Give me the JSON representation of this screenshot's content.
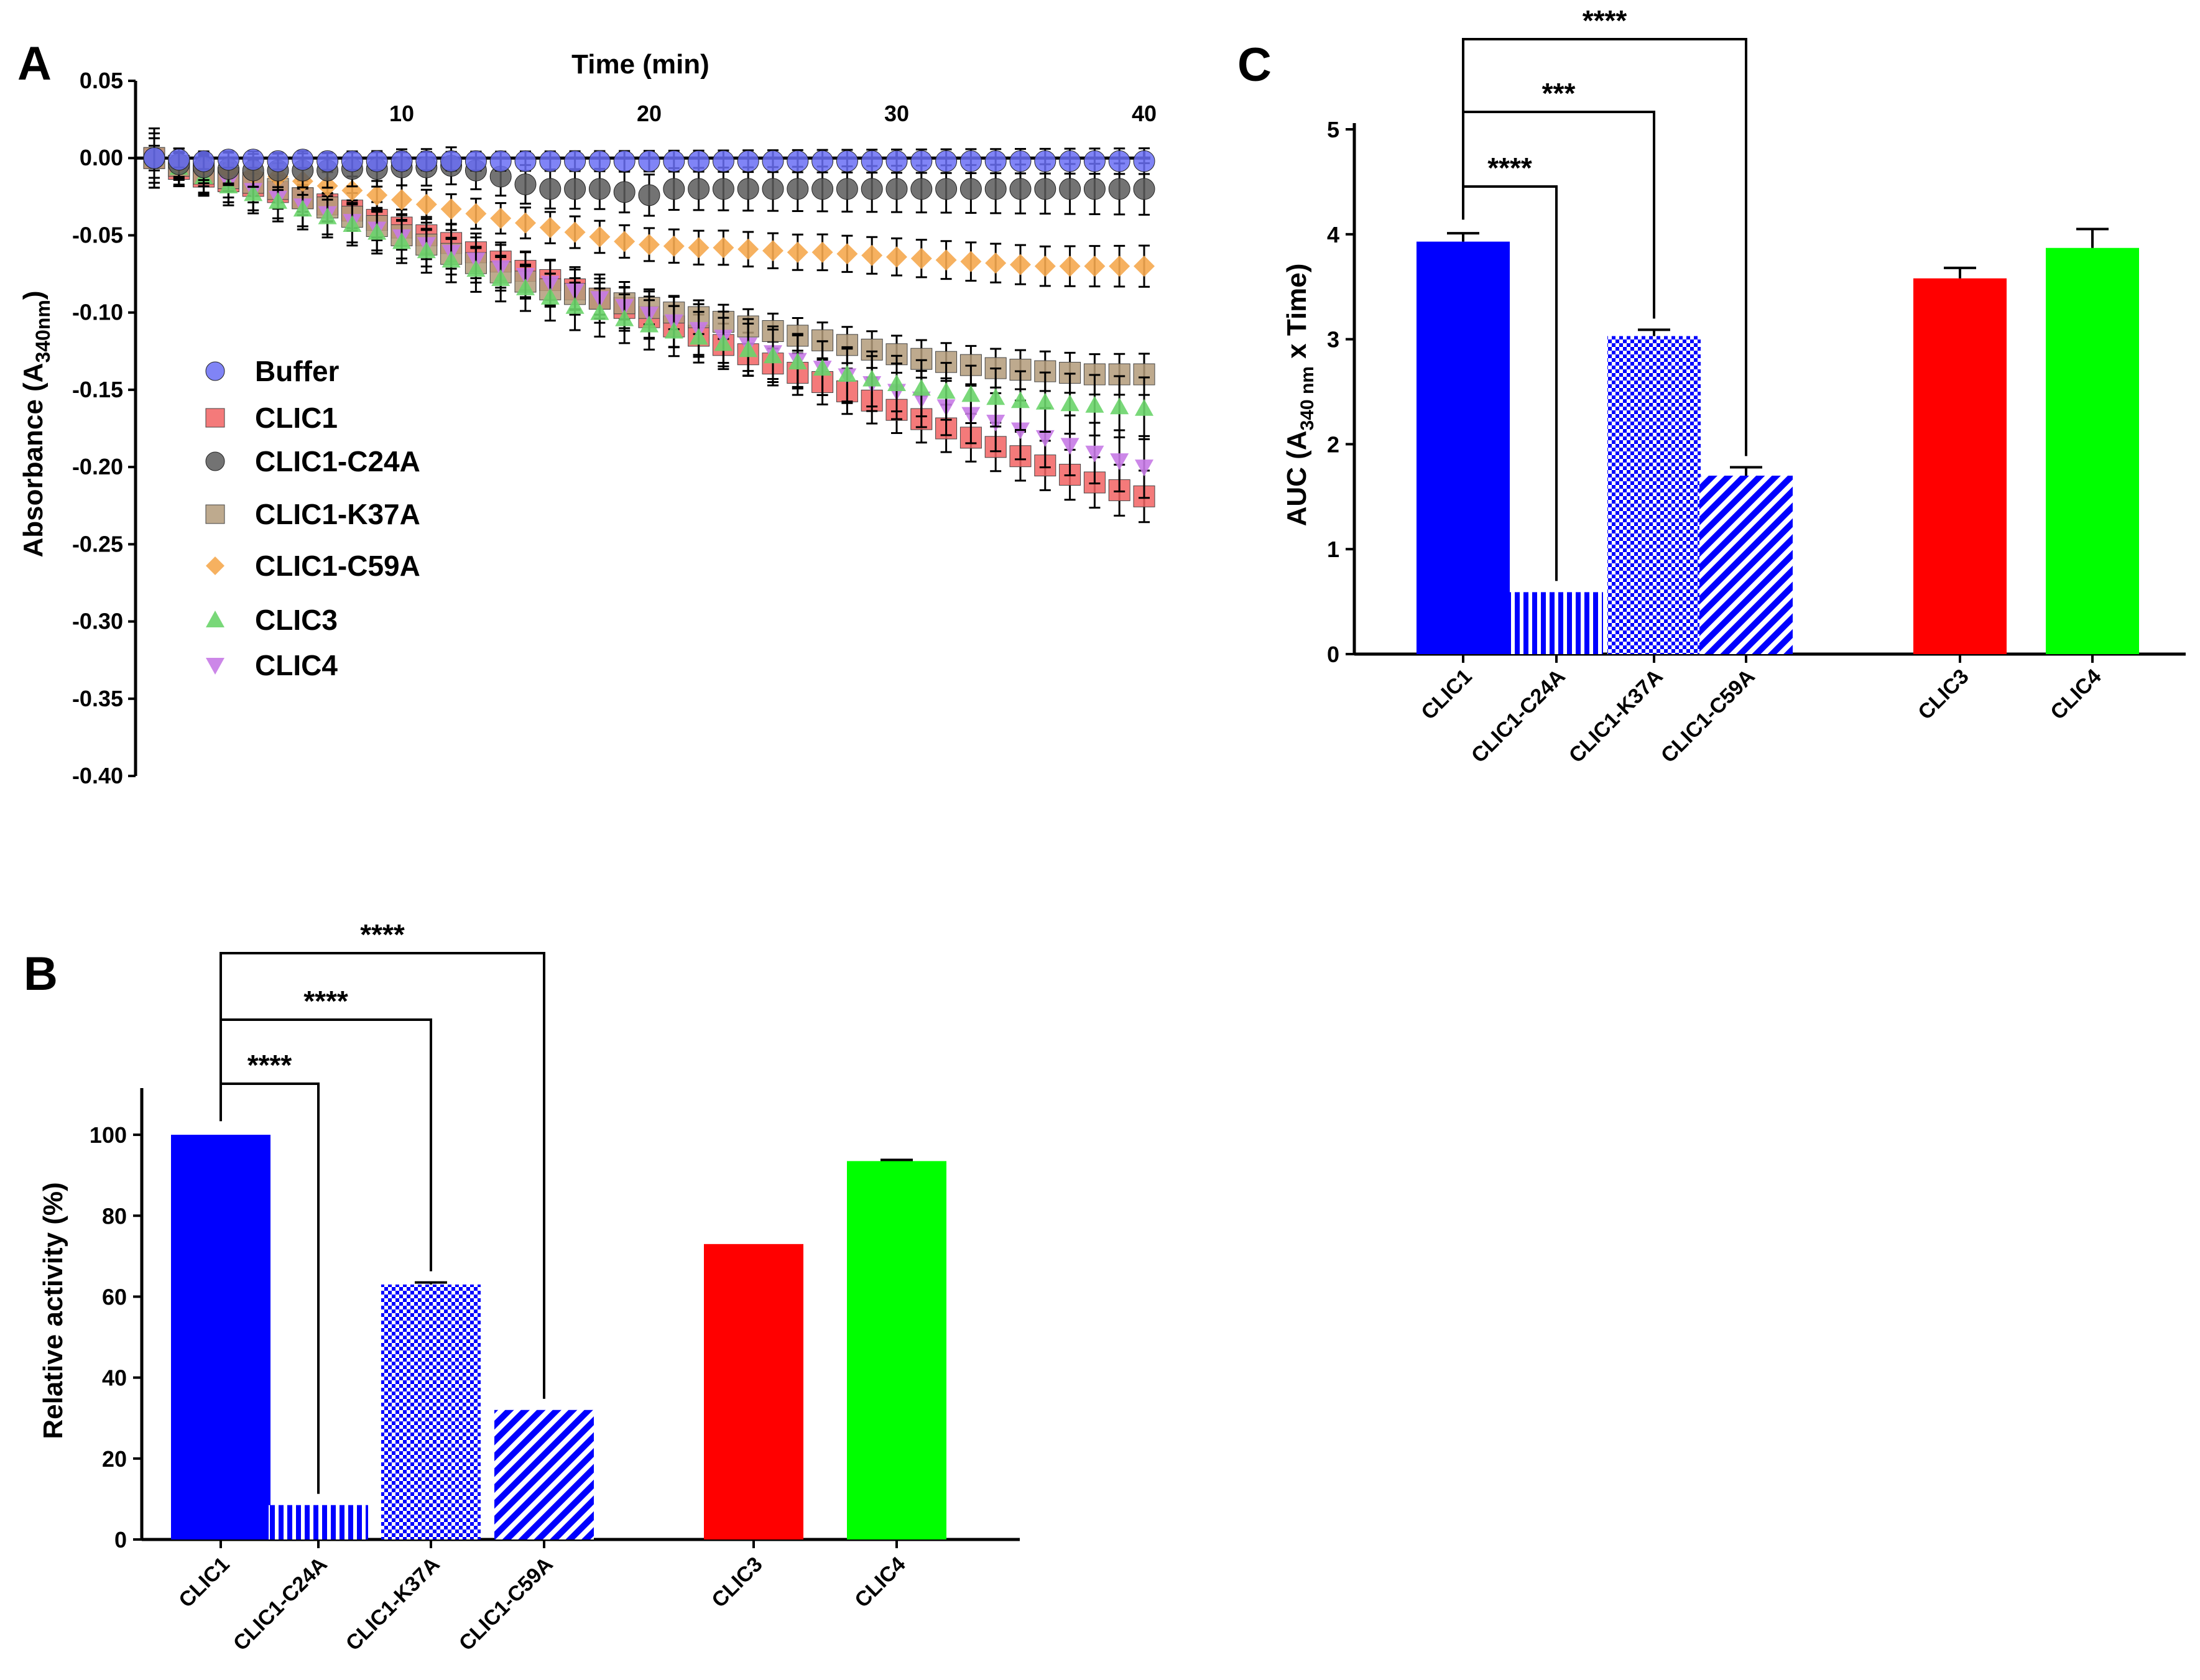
{
  "panels": {
    "A": {
      "letter": "A",
      "chart_data": {
        "type": "scatter",
        "title": "",
        "xlabel": "Time (min)",
        "ylabel": "Absorbance (A",
        "ylabel_sub": "340nm",
        "ylabel_end": ")",
        "xlim": [
          0,
          40
        ],
        "ylim": [
          -0.4,
          0.05
        ],
        "x_ticks": [
          10,
          20,
          30,
          40
        ],
        "x_tick_labels": [
          "10",
          "20",
          "30",
          "40"
        ],
        "y_ticks": [
          0.05,
          0.0,
          -0.05,
          -0.1,
          -0.15,
          -0.2,
          -0.25,
          -0.3,
          -0.35,
          -0.4
        ],
        "y_tick_labels": [
          "0.05",
          "0.00",
          "-0.05",
          "-0.10",
          "-0.15",
          "-0.20",
          "-0.25",
          "-0.30",
          "-0.35",
          "-0.40"
        ],
        "legend_position": "center-left",
        "series": [
          {
            "name": "Buffer",
            "marker": "circle",
            "color": "#6a6ef5",
            "error": 0.005,
            "x": [
              0,
              1,
              2,
              3,
              4,
              5,
              6,
              7,
              8,
              9,
              10,
              11,
              12,
              13,
              14,
              15,
              16,
              17,
              18,
              19,
              20,
              21,
              22,
              23,
              24,
              25,
              26,
              27,
              28,
              29,
              30,
              31,
              32,
              33,
              34,
              35,
              36,
              37,
              38,
              39,
              40
            ],
            "y": [
              0.0,
              -0.001,
              -0.002,
              -0.001,
              -0.001,
              -0.002,
              -0.001,
              -0.002,
              -0.002,
              -0.002,
              -0.002,
              -0.002,
              -0.002,
              -0.002,
              -0.002,
              -0.002,
              -0.002,
              -0.002,
              -0.002,
              -0.002,
              -0.002,
              -0.002,
              -0.002,
              -0.002,
              -0.002,
              -0.002,
              -0.002,
              -0.002,
              -0.002,
              -0.002,
              -0.002,
              -0.002,
              -0.002,
              -0.002,
              -0.002,
              -0.002,
              -0.002,
              -0.002,
              -0.002,
              -0.002,
              -0.002
            ]
          },
          {
            "name": "CLIC1",
            "marker": "square",
            "color": "#f26363",
            "error": 0.01,
            "x": [
              0,
              1,
              2,
              3,
              4,
              5,
              6,
              7,
              8,
              9,
              10,
              11,
              12,
              13,
              14,
              15,
              16,
              17,
              18,
              19,
              20,
              21,
              22,
              23,
              24,
              25,
              26,
              27,
              28,
              29,
              30,
              31,
              32,
              33,
              34,
              35,
              36,
              37,
              38,
              39,
              40
            ],
            "y": [
              0.0,
              -0.007,
              -0.012,
              -0.015,
              -0.018,
              -0.022,
              -0.026,
              -0.03,
              -0.034,
              -0.04,
              -0.045,
              -0.05,
              -0.055,
              -0.061,
              -0.067,
              -0.073,
              -0.079,
              -0.085,
              -0.091,
              -0.097,
              -0.103,
              -0.109,
              -0.115,
              -0.121,
              -0.127,
              -0.133,
              -0.139,
              -0.145,
              -0.151,
              -0.157,
              -0.163,
              -0.169,
              -0.175,
              -0.181,
              -0.187,
              -0.193,
              -0.199,
              -0.205,
              -0.21,
              -0.215,
              -0.219
            ]
          },
          {
            "name": "CLIC1-C24A",
            "marker": "circle",
            "color": "#5a5a5a",
            "error": 0.01,
            "x": [
              0,
              1,
              2,
              3,
              4,
              5,
              6,
              7,
              8,
              9,
              10,
              11,
              12,
              13,
              14,
              15,
              16,
              17,
              18,
              19,
              20,
              21,
              22,
              23,
              24,
              25,
              26,
              27,
              28,
              29,
              30,
              31,
              32,
              33,
              34,
              35,
              36,
              37,
              38,
              39,
              40
            ],
            "y": [
              0.0,
              -0.004,
              -0.006,
              -0.007,
              -0.008,
              -0.008,
              -0.008,
              -0.008,
              -0.007,
              -0.007,
              -0.006,
              -0.006,
              -0.005,
              -0.008,
              -0.012,
              -0.017,
              -0.02,
              -0.02,
              -0.02,
              -0.022,
              -0.024,
              -0.02,
              -0.02,
              -0.02,
              -0.02,
              -0.02,
              -0.02,
              -0.02,
              -0.02,
              -0.02,
              -0.02,
              -0.02,
              -0.02,
              -0.02,
              -0.02,
              -0.02,
              -0.02,
              -0.02,
              -0.02,
              -0.02,
              -0.02
            ]
          },
          {
            "name": "CLIC1-K37A",
            "marker": "square",
            "color": "#b39b7a",
            "error": 0.008,
            "x": [
              0,
              1,
              2,
              3,
              4,
              5,
              6,
              7,
              8,
              9,
              10,
              11,
              12,
              13,
              14,
              15,
              16,
              17,
              18,
              19,
              20,
              21,
              22,
              23,
              24,
              25,
              26,
              27,
              28,
              29,
              30,
              31,
              32,
              33,
              34,
              35,
              36,
              37,
              38,
              39,
              40
            ],
            "y": [
              0.0,
              -0.005,
              -0.01,
              -0.013,
              -0.016,
              -0.02,
              -0.026,
              -0.032,
              -0.038,
              -0.044,
              -0.05,
              -0.056,
              -0.062,
              -0.068,
              -0.074,
              -0.08,
              -0.085,
              -0.088,
              -0.091,
              -0.094,
              -0.097,
              -0.1,
              -0.103,
              -0.106,
              -0.109,
              -0.112,
              -0.115,
              -0.118,
              -0.121,
              -0.124,
              -0.127,
              -0.13,
              -0.132,
              -0.134,
              -0.136,
              -0.137,
              -0.138,
              -0.139,
              -0.14,
              -0.14,
              -0.14
            ]
          },
          {
            "name": "CLIC1-C59A",
            "marker": "diamond",
            "color": "#f5a84f",
            "error": 0.008,
            "x": [
              0,
              1,
              2,
              3,
              4,
              5,
              6,
              7,
              8,
              9,
              10,
              11,
              12,
              13,
              14,
              15,
              16,
              17,
              18,
              19,
              20,
              21,
              22,
              23,
              24,
              25,
              26,
              27,
              28,
              29,
              30,
              31,
              32,
              33,
              34,
              35,
              36,
              37,
              38,
              39,
              40
            ],
            "y": [
              0.0,
              -0.004,
              -0.006,
              -0.008,
              -0.01,
              -0.012,
              -0.015,
              -0.018,
              -0.021,
              -0.024,
              -0.027,
              -0.03,
              -0.033,
              -0.036,
              -0.039,
              -0.042,
              -0.045,
              -0.048,
              -0.051,
              -0.054,
              -0.056,
              -0.057,
              -0.058,
              -0.058,
              -0.059,
              -0.06,
              -0.061,
              -0.061,
              -0.062,
              -0.063,
              -0.064,
              -0.065,
              -0.066,
              -0.067,
              -0.068,
              -0.069,
              -0.07,
              -0.07,
              -0.07,
              -0.07,
              -0.07
            ]
          },
          {
            "name": "CLIC3",
            "marker": "triangle-up",
            "color": "#6ad46a",
            "error": 0.012,
            "x": [
              0,
              1,
              2,
              3,
              4,
              5,
              6,
              7,
              8,
              9,
              10,
              11,
              12,
              13,
              14,
              15,
              16,
              17,
              18,
              19,
              20,
              21,
              22,
              23,
              24,
              25,
              26,
              27,
              28,
              29,
              30,
              31,
              32,
              33,
              34,
              35,
              36,
              37,
              38,
              39,
              40
            ],
            "y": [
              0.0,
              -0.006,
              -0.012,
              -0.018,
              -0.023,
              -0.028,
              -0.033,
              -0.038,
              -0.043,
              -0.048,
              -0.054,
              -0.06,
              -0.066,
              -0.072,
              -0.078,
              -0.084,
              -0.09,
              -0.096,
              -0.1,
              -0.104,
              -0.108,
              -0.112,
              -0.116,
              -0.12,
              -0.124,
              -0.128,
              -0.132,
              -0.136,
              -0.14,
              -0.143,
              -0.146,
              -0.149,
              -0.151,
              -0.153,
              -0.155,
              -0.157,
              -0.158,
              -0.159,
              -0.16,
              -0.161,
              -0.162
            ]
          },
          {
            "name": "CLIC4",
            "marker": "triangle-down",
            "color": "#c77ae6",
            "error": 0.012,
            "x": [
              0,
              1,
              2,
              3,
              4,
              5,
              6,
              7,
              8,
              9,
              10,
              11,
              12,
              13,
              14,
              15,
              16,
              17,
              18,
              19,
              20,
              21,
              22,
              23,
              24,
              25,
              26,
              27,
              28,
              29,
              30,
              31,
              32,
              33,
              34,
              35,
              36,
              37,
              38,
              39,
              40
            ],
            "y": [
              0.0,
              -0.006,
              -0.011,
              -0.016,
              -0.021,
              -0.026,
              -0.031,
              -0.036,
              -0.041,
              -0.046,
              -0.051,
              -0.056,
              -0.061,
              -0.066,
              -0.071,
              -0.076,
              -0.081,
              -0.086,
              -0.091,
              -0.096,
              -0.101,
              -0.106,
              -0.111,
              -0.116,
              -0.121,
              -0.126,
              -0.131,
              -0.136,
              -0.141,
              -0.146,
              -0.151,
              -0.156,
              -0.161,
              -0.166,
              -0.171,
              -0.176,
              -0.181,
              -0.186,
              -0.191,
              -0.196,
              -0.2
            ]
          }
        ]
      }
    },
    "B": {
      "letter": "B",
      "chart_data": {
        "type": "bar",
        "title": "",
        "xlabel": "",
        "ylabel": "Relative activity (%)",
        "ylim": [
          0,
          110
        ],
        "y_ticks": [
          0,
          20,
          40,
          60,
          80,
          100
        ],
        "y_tick_labels": [
          "0",
          "20",
          "40",
          "60",
          "80",
          "100"
        ],
        "categories": [
          "CLIC1",
          "CLIC1-C24A",
          "CLIC1-K37A",
          "CLIC1-C59A",
          "CLIC3",
          "CLIC4"
        ],
        "values": [
          100,
          8.5,
          63,
          32,
          73,
          93.5
        ],
        "errors": [
          0,
          0,
          0.5,
          0,
          0,
          0.3
        ],
        "fills": [
          "solid",
          "vertical-stripes",
          "checker",
          "diagonal-stripes",
          "solid",
          "solid"
        ],
        "colors": [
          "#0000ff",
          "#0000ff",
          "#0000ff",
          "#0000ff",
          "#ff0000",
          "#00ff00"
        ],
        "significance": [
          {
            "from": "CLIC1",
            "to": "CLIC1-C24A",
            "label": "****"
          },
          {
            "from": "CLIC1",
            "to": "CLIC1-K37A",
            "label": "****"
          },
          {
            "from": "CLIC1",
            "to": "CLIC1-C59A",
            "label": "****"
          }
        ]
      }
    },
    "C": {
      "letter": "C",
      "chart_data": {
        "type": "bar",
        "title": "",
        "xlabel": "",
        "ylabel": "AUC (A",
        "ylabel_sub": "340 nm",
        "ylabel_end": " x Time)",
        "ylim": [
          0,
          5
        ],
        "y_ticks": [
          0,
          1,
          2,
          3,
          4,
          5
        ],
        "y_tick_labels": [
          "0",
          "1",
          "2",
          "3",
          "4",
          "5"
        ],
        "categories": [
          "CLIC1",
          "CLIC1-C24A",
          "CLIC1-K37A",
          "CLIC1-C59A",
          "CLIC3",
          "CLIC4"
        ],
        "values": [
          3.93,
          0.59,
          3.03,
          1.7,
          3.58,
          3.87
        ],
        "errors": [
          0.08,
          0,
          0.06,
          0.08,
          0.1,
          0.18
        ],
        "fills": [
          "solid",
          "vertical-stripes",
          "checker",
          "diagonal-stripes",
          "solid",
          "solid"
        ],
        "colors": [
          "#0000ff",
          "#0000ff",
          "#0000ff",
          "#0000ff",
          "#ff0000",
          "#00ff00"
        ],
        "significance": [
          {
            "from": "CLIC1",
            "to": "CLIC1-C24A",
            "label": "****"
          },
          {
            "from": "CLIC1",
            "to": "CLIC1-K37A",
            "label": "***"
          },
          {
            "from": "CLIC1",
            "to": "CLIC1-C59A",
            "label": "****"
          }
        ]
      }
    }
  }
}
